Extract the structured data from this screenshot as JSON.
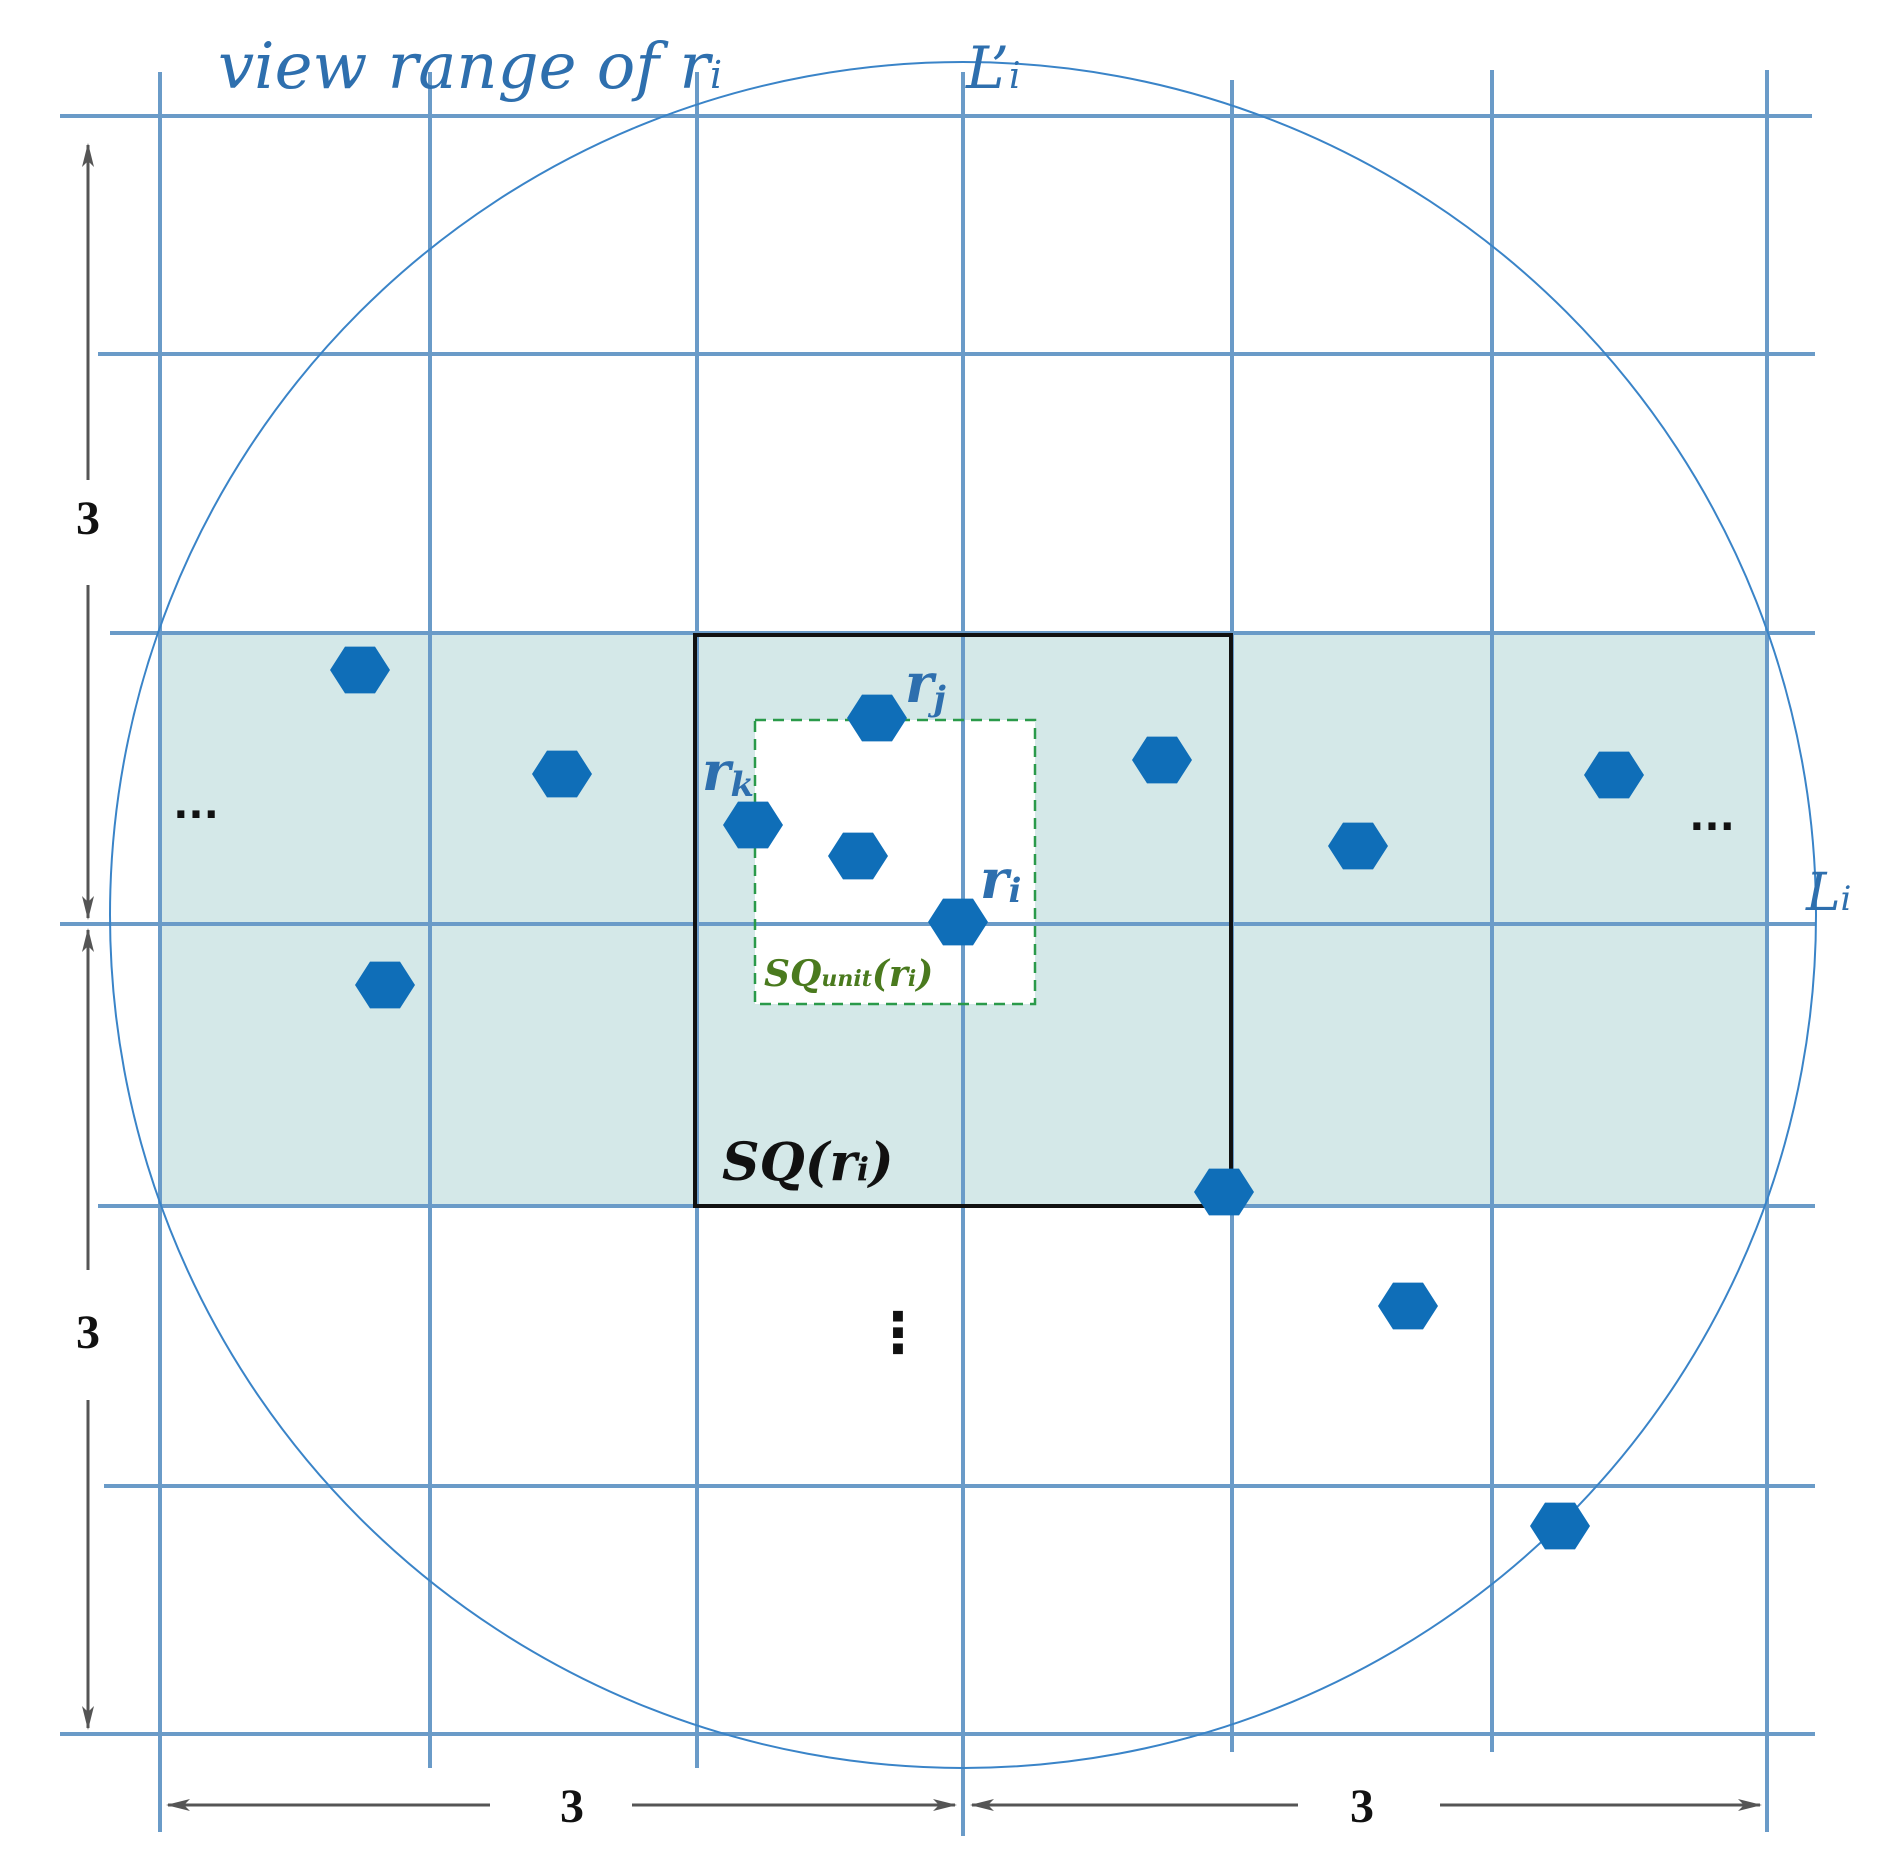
{
  "labels": {
    "view_range": "view range of r",
    "view_range_sub": "i",
    "l_prime": "L’",
    "l_prime_sub": "i",
    "l": "L",
    "l_sub": "i",
    "rj": "r",
    "rj_sub": "j",
    "rk": "r",
    "rk_sub": "k",
    "ri": "r",
    "ri_sub": "i",
    "sq_unit_prefix": "SQ",
    "sq_unit_sub": "unit",
    "sq_unit_paren_open": "(r",
    "sq_unit_paren_sub": "i",
    "sq_unit_paren_close": ")",
    "sq_prefix": "SQ(r",
    "sq_sub": "i",
    "sq_close": ")",
    "ellipsis_left": "...",
    "ellipsis_right": "...",
    "ellipsis_vertical": "⋮"
  },
  "dimensions": {
    "left_top": "3",
    "left_bottom": "3",
    "bottom_left": "3",
    "bottom_right": "3"
  },
  "colors": {
    "grid": "#6a9bc8",
    "band": "#d4e8e8",
    "robot": "#0f6eb8",
    "circle": "#3a84c8",
    "square": "#111111",
    "unit_square": "#2a9a4a",
    "arrow": "#555555"
  }
}
